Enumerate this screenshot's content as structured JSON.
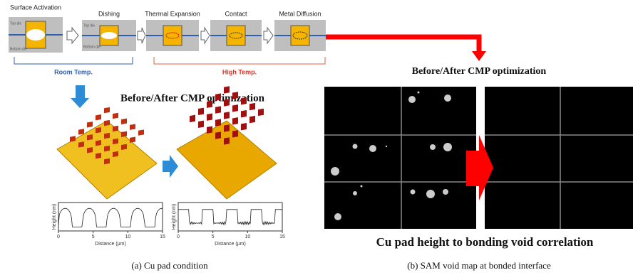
{
  "process": {
    "steps": [
      "Surface Activation",
      "Dishing",
      "Thermal Expansion",
      "Contact",
      "Metal Diffusion"
    ],
    "die_labels": [
      "Top die",
      "Bottom die"
    ],
    "room_temp": "Room Temp.",
    "high_temp": "High Temp."
  },
  "panel_a": {
    "heading": "Before/After CMP optimization",
    "profile": {
      "y_label": "Height (nm)",
      "x_label": "Distance (μm)",
      "x_ticks": [
        0,
        5,
        10,
        15
      ]
    },
    "caption": "(a) Cu pad condition"
  },
  "panel_b": {
    "heading": "Before/After CMP optimization",
    "title": "Cu pad height to bonding void correlation",
    "caption": "(b) SAM void map at bonded interface"
  }
}
